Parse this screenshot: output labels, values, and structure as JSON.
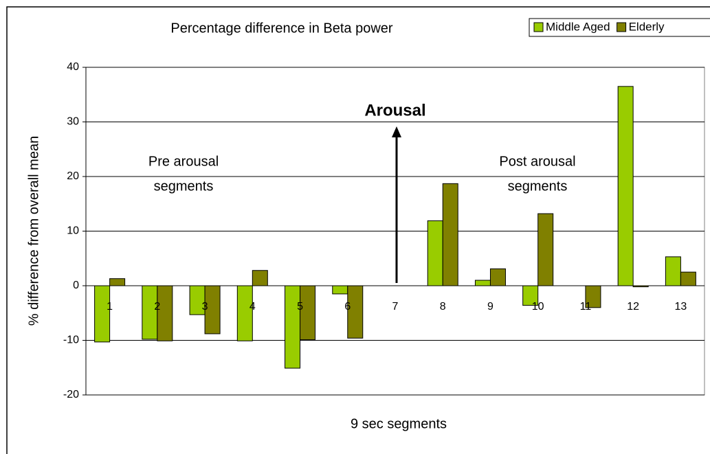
{
  "chart_data": {
    "type": "bar",
    "title": "Percentage difference in Beta power",
    "x_label": "9 sec segments",
    "y_label": "% difference from overall mean",
    "categories": [
      "1",
      "2",
      "3",
      "4",
      "5",
      "6",
      "7",
      "8",
      "9",
      "10",
      "11",
      "12",
      "13"
    ],
    "series": [
      {
        "name": "Middle Aged",
        "color": "#99cc00",
        "values": [
          -10.3,
          -9.8,
          -5.3,
          -10.1,
          -15.1,
          -1.5,
          null,
          11.9,
          1.0,
          -3.6,
          null,
          36.5,
          5.3
        ]
      },
      {
        "name": "Elderly",
        "color": "#808000",
        "values": [
          1.3,
          -10.1,
          -8.8,
          2.8,
          -9.9,
          -9.6,
          null,
          18.7,
          3.1,
          13.2,
          -4.0,
          -0.2,
          2.5
        ]
      }
    ],
    "ylim": [
      -20,
      40
    ],
    "yticks": [
      -20,
      -10,
      0,
      10,
      20,
      30,
      40
    ],
    "grid": true,
    "legend": "top-right",
    "annotations": [
      {
        "text": "Arousal"
      },
      {
        "lines": [
          "Pre arousal",
          "segments"
        ]
      },
      {
        "lines": [
          "Post arousal",
          "segments"
        ]
      }
    ]
  }
}
